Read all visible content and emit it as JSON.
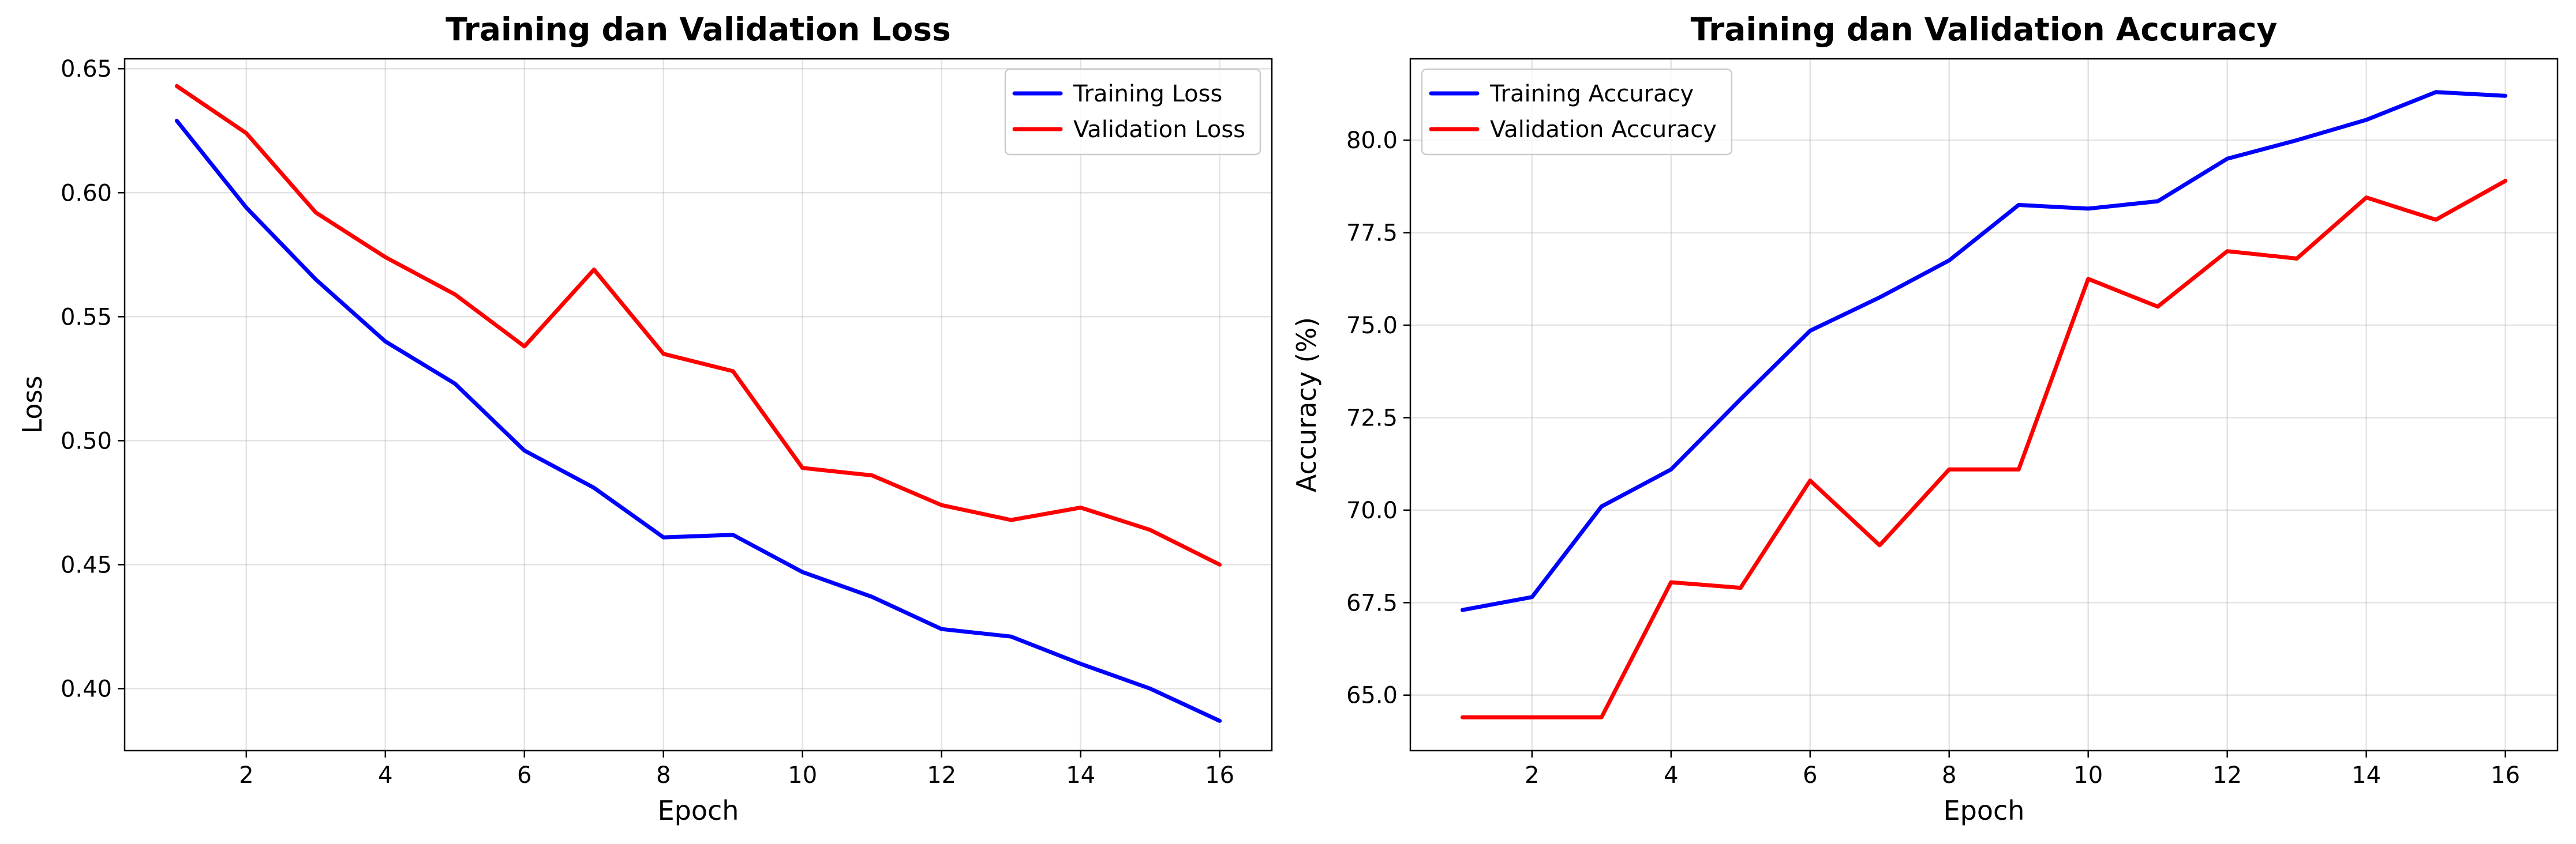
{
  "chart_data": [
    {
      "type": "line",
      "title": "Training dan Validation Loss",
      "xlabel": "Epoch",
      "ylabel": "Loss",
      "xlim": [
        0.25,
        16.75
      ],
      "ylim": [
        0.375,
        0.654
      ],
      "xticks": [
        2,
        4,
        6,
        8,
        10,
        12,
        14,
        16
      ],
      "xtick_labels": [
        "2",
        "4",
        "6",
        "8",
        "10",
        "12",
        "14",
        "16"
      ],
      "yticks": [
        0.4,
        0.45,
        0.5,
        0.55,
        0.6,
        0.65
      ],
      "ytick_labels": [
        "0.40",
        "0.45",
        "0.50",
        "0.55",
        "0.60",
        "0.65"
      ],
      "grid": true,
      "legend_position": "top-right",
      "x": [
        1,
        2,
        3,
        4,
        5,
        6,
        7,
        8,
        9,
        10,
        11,
        12,
        13,
        14,
        15,
        16
      ],
      "series": [
        {
          "name": "Training Loss",
          "color": "#0000ff",
          "values": [
            0.629,
            0.594,
            0.565,
            0.54,
            0.523,
            0.496,
            0.481,
            0.461,
            0.462,
            0.447,
            0.437,
            0.424,
            0.421,
            0.41,
            0.4,
            0.387
          ]
        },
        {
          "name": "Validation Loss",
          "color": "#ff0000",
          "values": [
            0.643,
            0.624,
            0.592,
            0.574,
            0.559,
            0.538,
            0.569,
            0.535,
            0.528,
            0.489,
            0.486,
            0.474,
            0.468,
            0.473,
            0.464,
            0.45
          ]
        }
      ]
    },
    {
      "type": "line",
      "title": "Training dan Validation Accuracy",
      "xlabel": "Epoch",
      "ylabel": "Accuracy (%)",
      "xlim": [
        0.25,
        16.75
      ],
      "ylim": [
        63.5,
        82.2
      ],
      "xticks": [
        2,
        4,
        6,
        8,
        10,
        12,
        14,
        16
      ],
      "xtick_labels": [
        "2",
        "4",
        "6",
        "8",
        "10",
        "12",
        "14",
        "16"
      ],
      "yticks": [
        65.0,
        67.5,
        70.0,
        72.5,
        75.0,
        77.5,
        80.0
      ],
      "ytick_labels": [
        "65.0",
        "67.5",
        "70.0",
        "72.5",
        "75.0",
        "77.5",
        "80.0"
      ],
      "grid": true,
      "legend_position": "top-left",
      "x": [
        1,
        2,
        3,
        4,
        5,
        6,
        7,
        8,
        9,
        10,
        11,
        12,
        13,
        14,
        15,
        16
      ],
      "series": [
        {
          "name": "Training Accuracy",
          "color": "#0000ff",
          "values": [
            67.3,
            67.65,
            70.1,
            71.1,
            73.0,
            74.85,
            75.75,
            76.75,
            78.25,
            78.15,
            78.35,
            79.5,
            80.0,
            80.55,
            81.3,
            81.2
          ]
        },
        {
          "name": "Validation Accuracy",
          "color": "#ff0000",
          "values": [
            64.4,
            64.4,
            64.4,
            68.05,
            67.9,
            70.8,
            69.05,
            71.1,
            71.1,
            76.25,
            75.5,
            77.0,
            76.8,
            78.45,
            77.85,
            78.9
          ]
        }
      ]
    }
  ]
}
